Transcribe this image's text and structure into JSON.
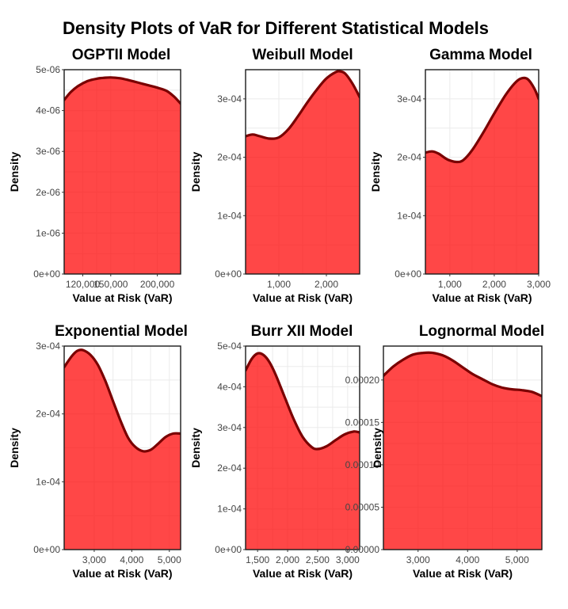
{
  "title": "Density Plots of VaR for Different Statistical Models",
  "chart_data": [
    {
      "type": "area",
      "title": "OGPTII Model",
      "xlabel": "Value at Risk (VaR)",
      "ylabel": "Density",
      "xlim": [
        100000,
        225000
      ],
      "ylim": [
        0,
        5e-06
      ],
      "xticks": [
        120000,
        150000,
        200000
      ],
      "xtick_labels": [
        "120,000",
        "150,000",
        "200,000"
      ],
      "yticks": [
        0,
        1e-06,
        2e-06,
        3e-06,
        4e-06,
        5e-06
      ],
      "ytick_labels": [
        "0e+00",
        "1e-06",
        "2e-06",
        "3e-06",
        "4e-06",
        "5e-06"
      ],
      "x": [
        100000,
        107000,
        115000,
        125000,
        135000,
        142000,
        150000,
        160000,
        170000,
        180000,
        190000,
        200000,
        210000,
        218000,
        225000
      ],
      "y": [
        4.26e-06,
        4.45e-06,
        4.6e-06,
        4.72e-06,
        4.78e-06,
        4.8e-06,
        4.81e-06,
        4.79e-06,
        4.74e-06,
        4.68e-06,
        4.62e-06,
        4.56e-06,
        4.48e-06,
        4.34e-06,
        4.17e-06
      ]
    },
    {
      "type": "area",
      "title": "Weibull Model",
      "xlabel": "Value at Risk (VaR)",
      "ylabel": "Density",
      "xlim": [
        300,
        2700
      ],
      "ylim": [
        0,
        0.00035
      ],
      "xticks": [
        1000,
        2000
      ],
      "xtick_labels": [
        "1,000",
        "2,000"
      ],
      "yticks": [
        0,
        0.0001,
        0.0002,
        0.0003
      ],
      "ytick_labels": [
        "0e+00",
        "1e-04",
        "2e-04",
        "3e-04"
      ],
      "x": [
        300,
        450,
        600,
        800,
        1000,
        1200,
        1400,
        1600,
        1800,
        2000,
        2200,
        2300,
        2400,
        2550,
        2700
      ],
      "y": [
        0.000236,
        0.000239,
        0.000236,
        0.000232,
        0.000234,
        0.000248,
        0.00027,
        0.000294,
        0.000316,
        0.000335,
        0.000346,
        0.000347,
        0.000343,
        0.000326,
        0.000303
      ]
    },
    {
      "type": "area",
      "title": "Gamma Model",
      "xlabel": "Value at Risk (VaR)",
      "ylabel": "Density",
      "xlim": [
        450,
        3000
      ],
      "ylim": [
        0,
        0.00035
      ],
      "xticks": [
        1000,
        2000,
        3000
      ],
      "xtick_labels": [
        "1,000",
        "2,000",
        "3,000"
      ],
      "yticks": [
        0,
        0.0001,
        0.0002,
        0.0003
      ],
      "ytick_labels": [
        "0e+00",
        "1e-04",
        "2e-04",
        "3e-04"
      ],
      "x": [
        450,
        600,
        750,
        950,
        1150,
        1300,
        1500,
        1750,
        2000,
        2250,
        2450,
        2600,
        2750,
        2900,
        3000
      ],
      "y": [
        0.000208,
        0.00021,
        0.000206,
        0.000196,
        0.000192,
        0.000195,
        0.000212,
        0.000242,
        0.000275,
        0.000306,
        0.000326,
        0.000335,
        0.000334,
        0.000318,
        0.0003
      ]
    },
    {
      "type": "area",
      "title": "Exponential Model",
      "xlabel": "Value at Risk (VaR)",
      "ylabel": "Density",
      "xlim": [
        2200,
        5300
      ],
      "ylim": [
        0,
        0.0003
      ],
      "xticks": [
        3000,
        4000,
        5000
      ],
      "xtick_labels": [
        "3,000",
        "4,000",
        "5,000"
      ],
      "yticks": [
        0,
        0.0001,
        0.0002,
        0.0003
      ],
      "ytick_labels": [
        "0e+00",
        "1e-04",
        "2e-04",
        "3e-04"
      ],
      "x": [
        2200,
        2400,
        2550,
        2700,
        2900,
        3100,
        3300,
        3500,
        3700,
        3900,
        4100,
        4300,
        4500,
        4700,
        4900,
        5100,
        5300
      ],
      "y": [
        0.000269,
        0.000285,
        0.000293,
        0.000294,
        0.000287,
        0.000272,
        0.000248,
        0.000219,
        0.00019,
        0.000165,
        0.000151,
        0.000145,
        0.000147,
        0.000156,
        0.000166,
        0.000171,
        0.000171
      ]
    },
    {
      "type": "area",
      "title": "Burr XII Model",
      "xlabel": "Value at Risk (VaR)",
      "ylabel": "Density",
      "xlim": [
        1300,
        3200
      ],
      "ylim": [
        0,
        0.0005
      ],
      "xticks": [
        1500,
        2000,
        2500,
        3000
      ],
      "xtick_labels": [
        "1,500",
        "2,000",
        "2,500",
        "3,000"
      ],
      "yticks": [
        0,
        0.0001,
        0.0002,
        0.0003,
        0.0004,
        0.0005
      ],
      "ytick_labels": [
        "0e+00",
        "1e-04",
        "2e-04",
        "3e-04",
        "4e-04",
        "5e-04"
      ],
      "x": [
        1300,
        1400,
        1500,
        1600,
        1700,
        1800,
        1950,
        2100,
        2250,
        2400,
        2500,
        2650,
        2800,
        2950,
        3100,
        3200
      ],
      "y": [
        0.00044,
        0.000468,
        0.000482,
        0.000478,
        0.00046,
        0.00043,
        0.000375,
        0.000321,
        0.000277,
        0.000252,
        0.000247,
        0.000254,
        0.000269,
        0.000283,
        0.00029,
        0.000288
      ]
    },
    {
      "type": "area",
      "title": "Lognormal Model",
      "xlabel": "Value at Risk (VaR)",
      "ylabel": "Density",
      "xlim": [
        2300,
        5500
      ],
      "ylim": [
        0,
        0.00024
      ],
      "xticks": [
        3000,
        4000,
        5000
      ],
      "xtick_labels": [
        "3,000",
        "4,000",
        "5,000"
      ],
      "yticks": [
        0,
        5e-05,
        0.0001,
        0.00015,
        0.0002
      ],
      "ytick_labels": [
        "0.00000",
        "0.00005",
        "0.00010",
        "0.00015",
        "0.00020"
      ],
      "x": [
        2300,
        2500,
        2700,
        2900,
        3100,
        3300,
        3500,
        3700,
        3900,
        4100,
        4300,
        4500,
        4700,
        4900,
        5100,
        5300,
        5500
      ],
      "y": [
        0.000205,
        0.000216,
        0.000224,
        0.00023,
        0.000232,
        0.000232,
        0.000229,
        0.000223,
        0.000215,
        0.000207,
        0.000201,
        0.000195,
        0.000191,
        0.000189,
        0.000188,
        0.000186,
        0.000181
      ]
    }
  ]
}
